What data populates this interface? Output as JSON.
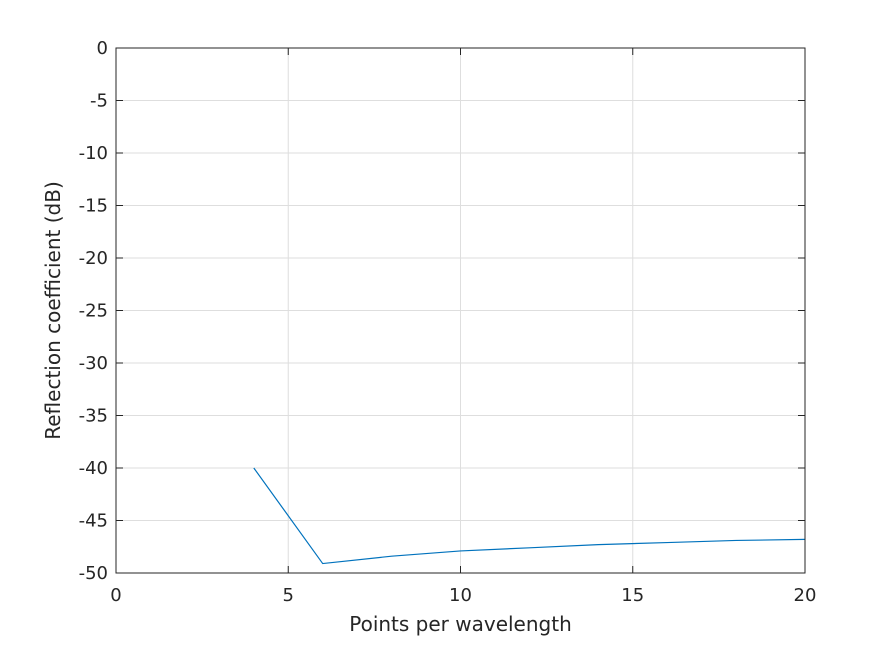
{
  "chart_data": {
    "type": "line",
    "title": "",
    "xlabel": "Points per wavelength",
    "ylabel": "Reflection coefficient (dB)",
    "xlim": [
      0,
      20
    ],
    "ylim": [
      -50,
      0
    ],
    "xticks": [
      0,
      5,
      10,
      15,
      20
    ],
    "yticks": [
      0,
      -5,
      -10,
      -15,
      -20,
      -25,
      -30,
      -35,
      -40,
      -45,
      -50
    ],
    "xtick_labels": [
      "0",
      "5",
      "10",
      "15",
      "20"
    ],
    "ytick_labels": [
      "0",
      "-5",
      "-10",
      "-15",
      "-20",
      "-25",
      "-30",
      "-35",
      "-40",
      "-45",
      "-50"
    ],
    "grid": true,
    "legend": false,
    "series": [
      {
        "color": "#0072BD",
        "x": [
          4,
          6,
          8,
          10,
          12,
          14,
          16,
          18,
          20
        ],
        "y": [
          -40.0,
          -49.1,
          -48.4,
          -47.9,
          -47.6,
          -47.3,
          -47.1,
          -46.9,
          -46.8
        ]
      }
    ]
  }
}
